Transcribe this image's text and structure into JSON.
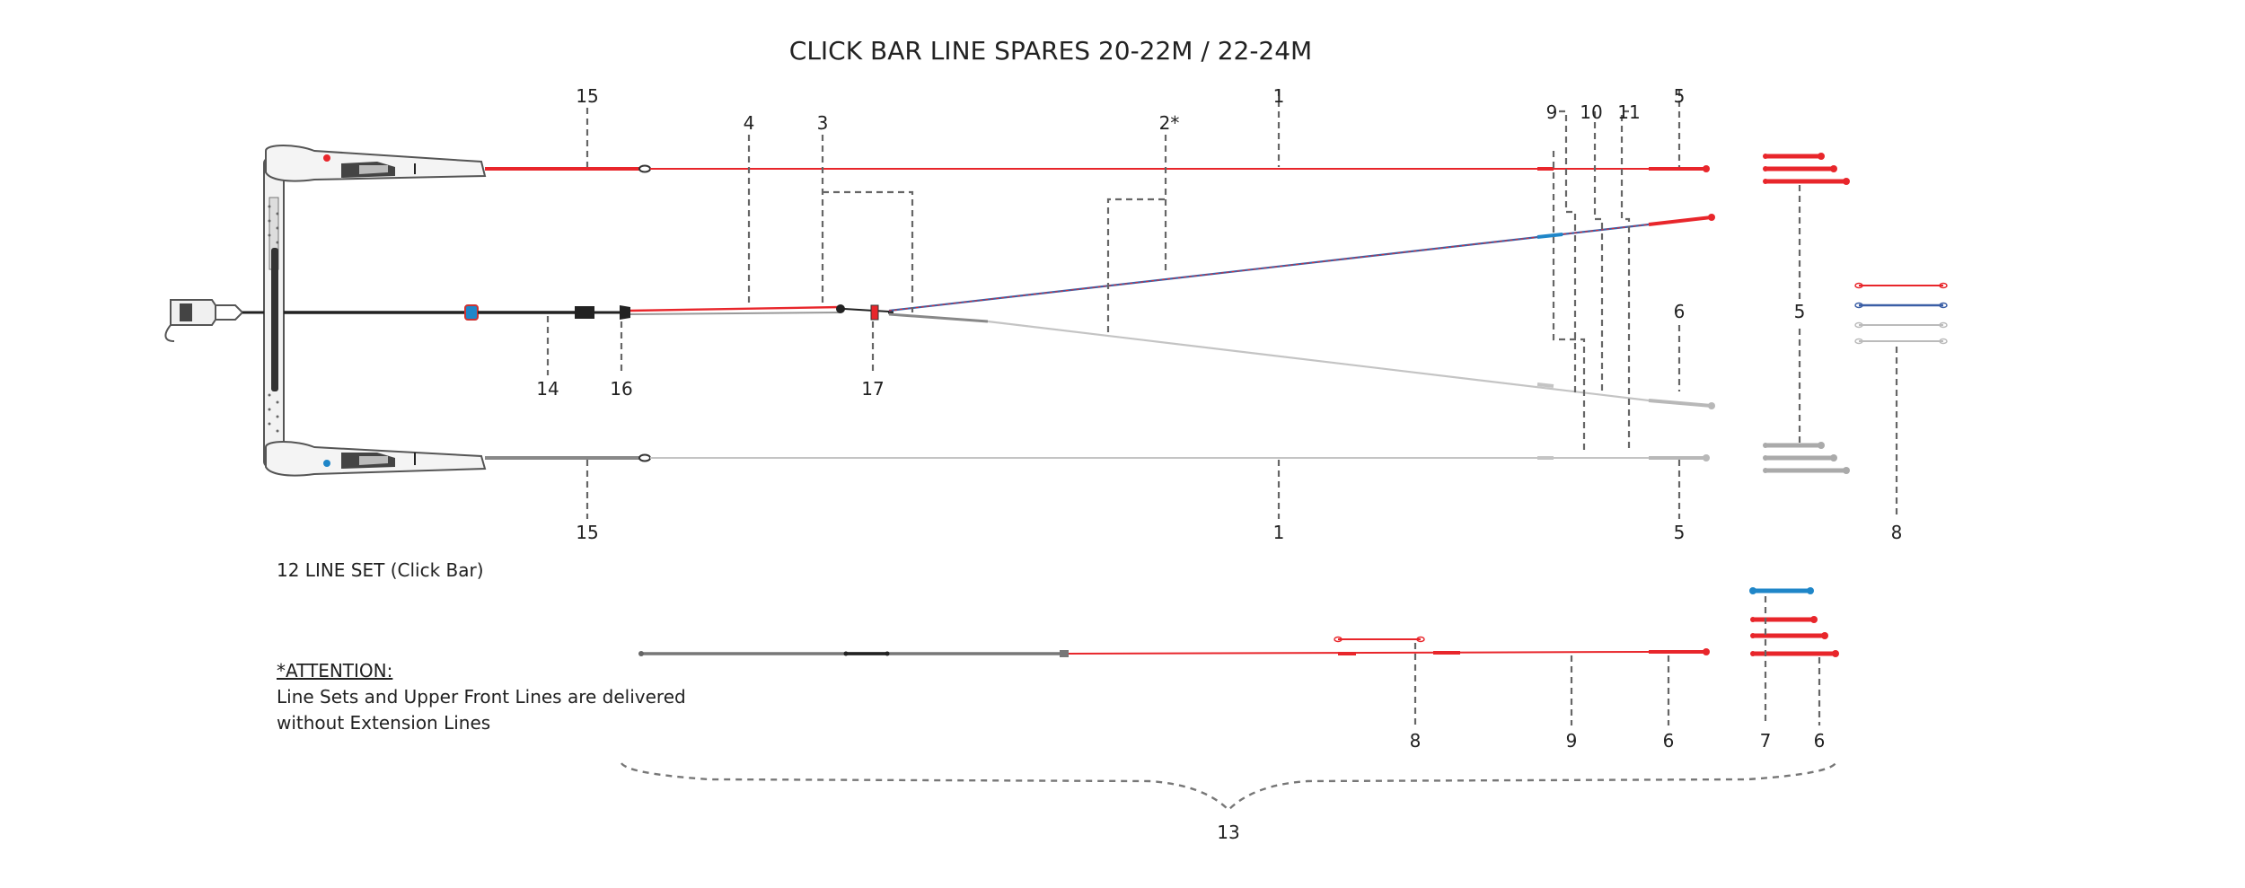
{
  "title": "CLICK BAR LINE SPARES 20-22M / 22-24M",
  "callouts": {
    "n1": "1",
    "n2": "2*",
    "n3": "3",
    "n4": "4",
    "n5": "5",
    "n6": "6",
    "n7": "7",
    "n8": "8",
    "n9": "9",
    "n10": "10",
    "n11": "11",
    "n13": "13",
    "n14": "14",
    "n15": "15",
    "n16": "16",
    "n17": "17"
  },
  "line_set_label": "12  LINE SET (Click Bar)",
  "attention": {
    "heading": "*ATTENTION:",
    "line1": "Line Sets and Upper Front Lines are delivered",
    "line2": "without Extension Lines"
  },
  "colors": {
    "red": "#e8262b",
    "grey": "#b8b8b8",
    "dark": "#222222",
    "blue": "#1f86c8"
  }
}
